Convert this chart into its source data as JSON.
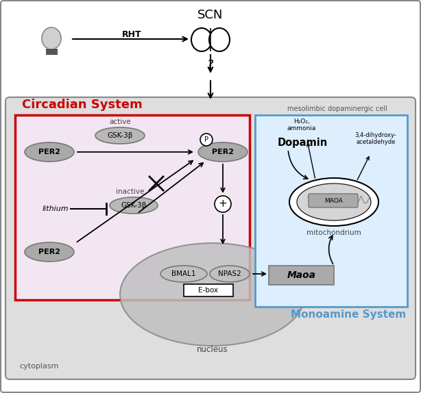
{
  "bg_color": "#ffffff",
  "cell_bg": "#dedede",
  "circadian_bg": "#f2e6f2",
  "circadian_edge": "#cc0000",
  "monoamine_bg": "#ddeeff",
  "monoamine_edge": "#5599cc",
  "nucleus_fc": "#c0c0c0",
  "pill_fc": "#aaaaaa",
  "pill_ec": "#777777",
  "gsk_fc": "#b8b8b8",
  "maoa_fc": "#aaaaaa",
  "title_circadian": "Circadian System",
  "title_monoamine": "Monoamine System",
  "label_cell": "mesolimbic dopaminergic cell",
  "label_cytoplasm": "cytoplasm",
  "label_nucleus": "nucleus",
  "label_SCN": "SCN",
  "label_RHT": "RHT",
  "label_active": "active",
  "label_inactive": "inactive",
  "label_lithium": "lithium",
  "label_GSK3b": "GSK-3β",
  "label_PER2": "PER2",
  "label_BMAL1": "BMAL1",
  "label_NPAS2": "NPAS2",
  "label_Ebox": "E-box",
  "label_Maoa": "Maoa",
  "label_Dopamin": "Dopamin",
  "label_MAOA": "MAOA",
  "label_mito": "mitochondrium",
  "label_H2O2": "H₂O₂,\nammonia",
  "label_34di": "3,4-dihydroxy-\nacetaldehyde",
  "label_plus": "+",
  "label_P": "P"
}
